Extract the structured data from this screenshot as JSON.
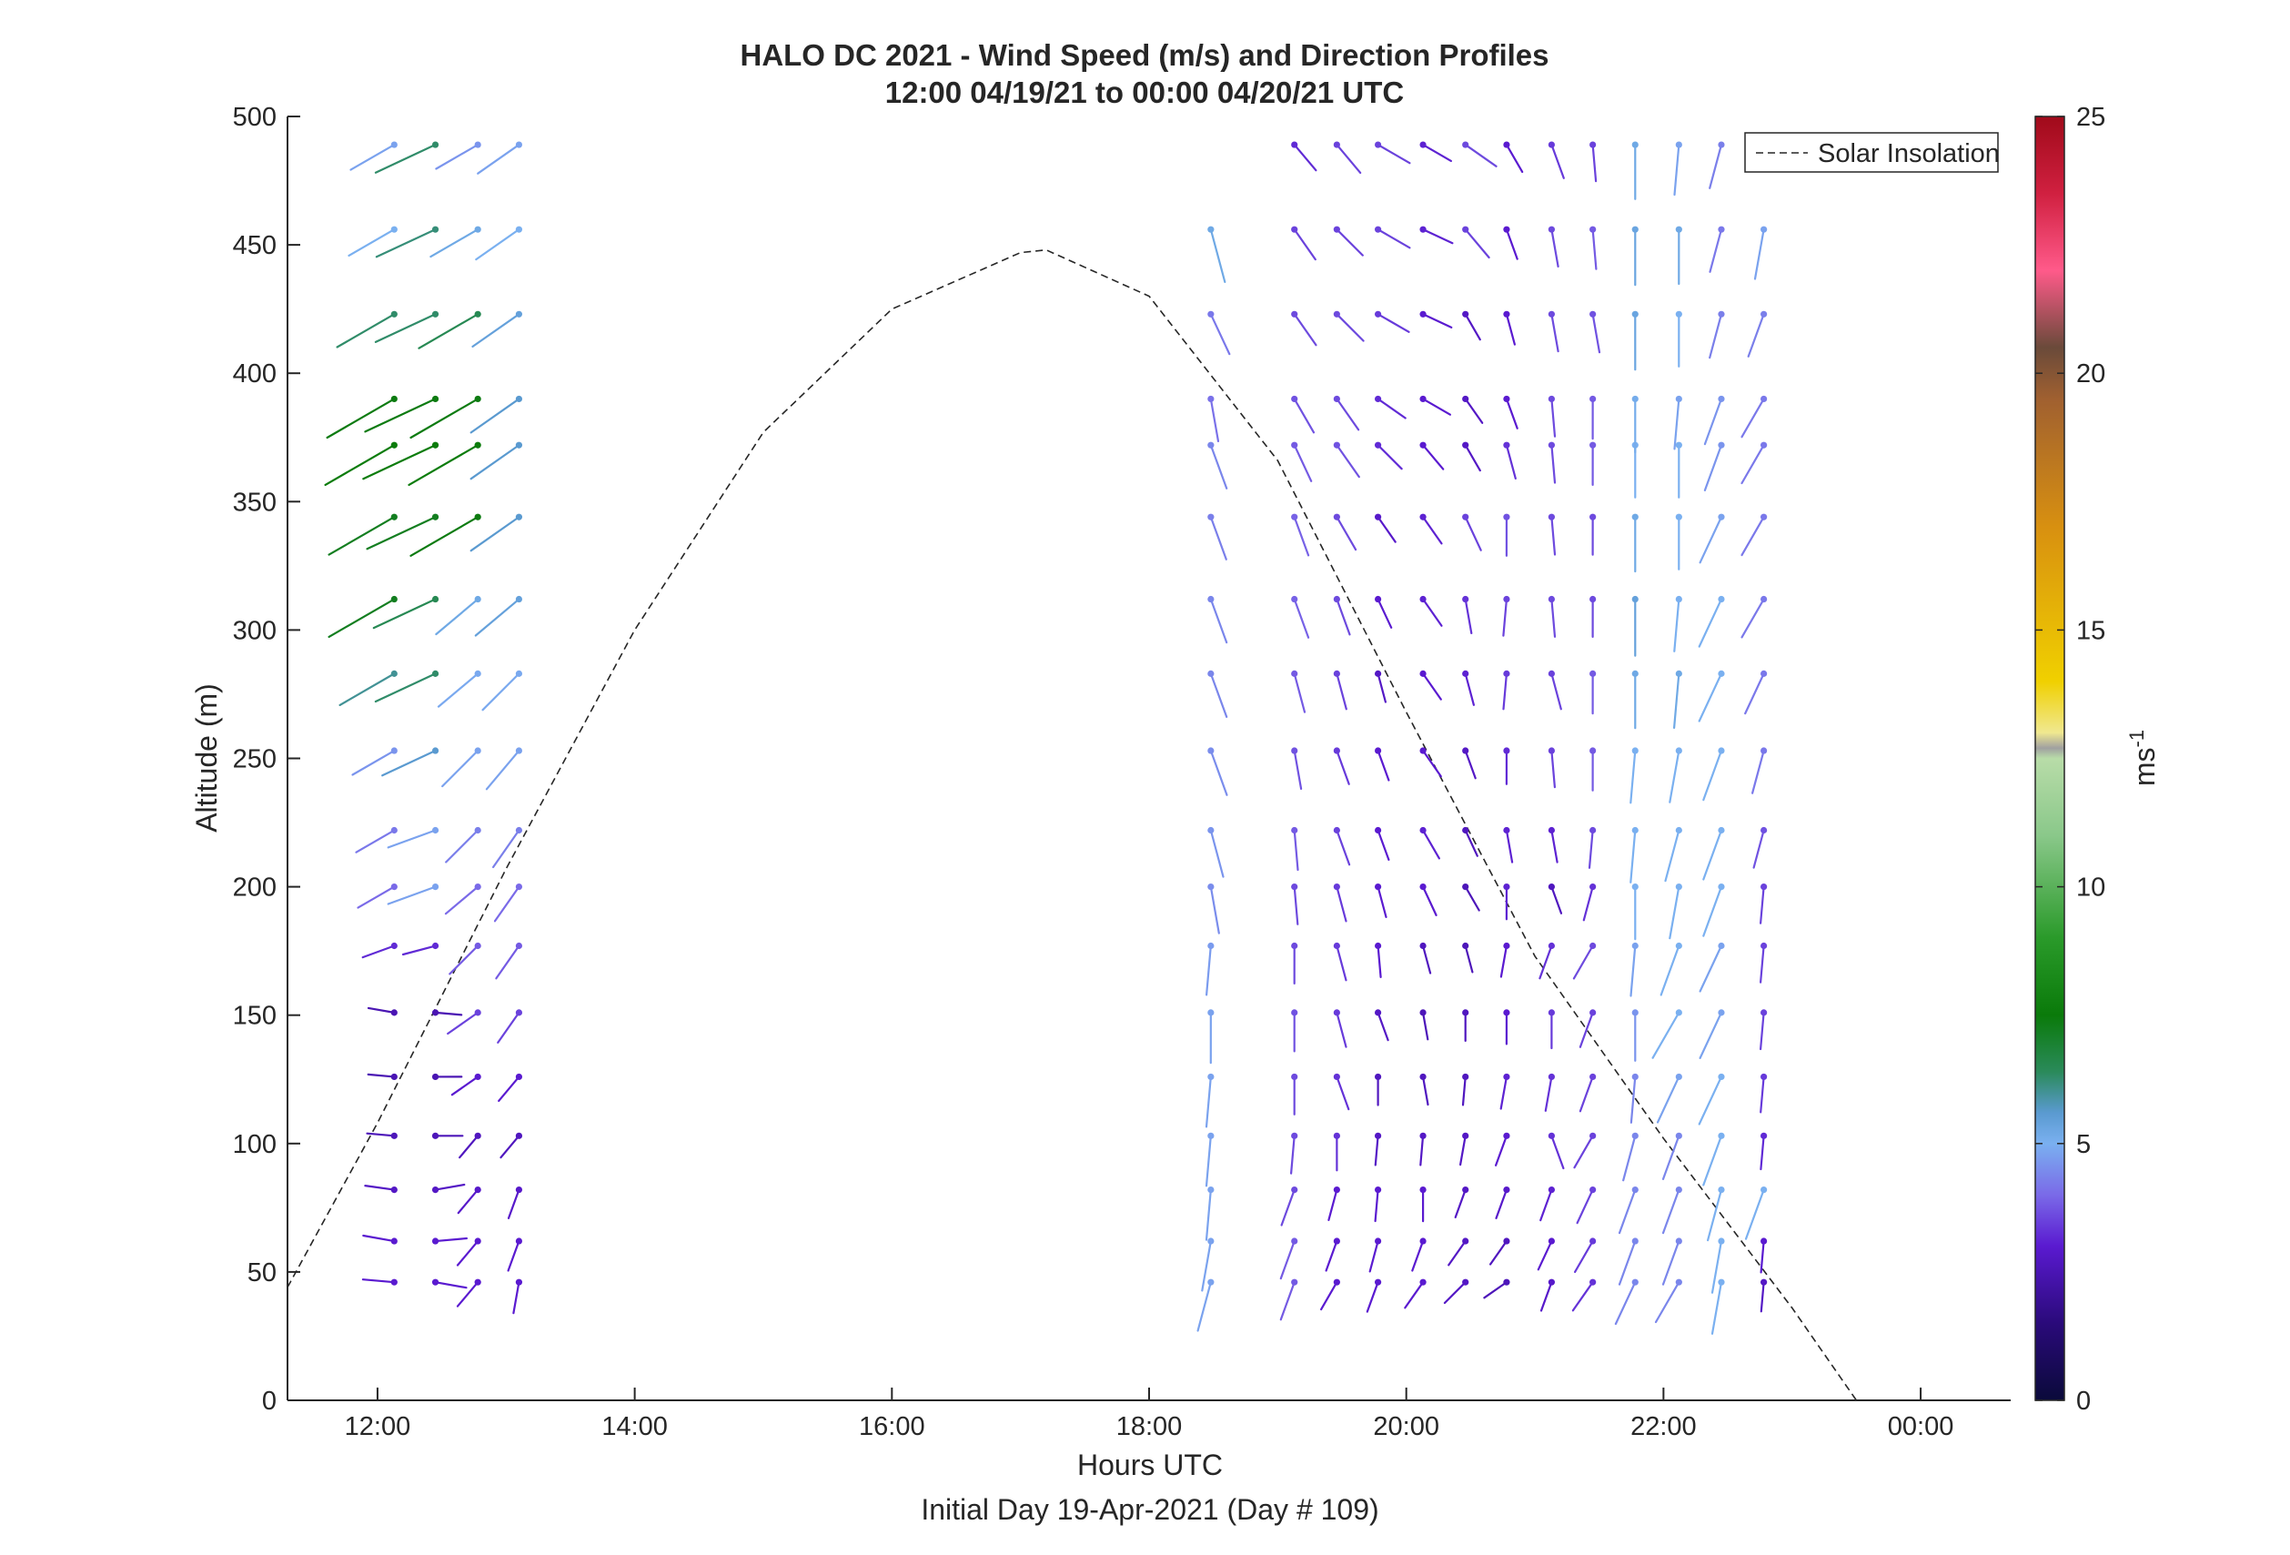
{
  "chart_data": {
    "type": "wind-barb-profile",
    "title": "HALO DC 2021 - Wind Speed (m/s) and Direction Profiles",
    "subtitle": "12:00 04/19/21 to 00:00 04/20/21  UTC",
    "xlabel": "Hours UTC",
    "xlabel2": "Initial Day 19-Apr-2021 (Day # 109)",
    "ylabel": "Altitude (m)",
    "xlim": [
      11.3,
      24.7
    ],
    "ylim": [
      0,
      500
    ],
    "x_ticks": [
      12,
      14,
      16,
      18,
      20,
      22,
      24
    ],
    "x_tick_labels": [
      "12:00",
      "14:00",
      "16:00",
      "18:00",
      "20:00",
      "22:00",
      "00:00"
    ],
    "y_ticks": [
      0,
      50,
      100,
      150,
      200,
      250,
      300,
      350,
      400,
      450,
      500
    ],
    "y_tick_labels": [
      "0",
      "50",
      "100",
      "150",
      "200",
      "250",
      "300",
      "350",
      "400",
      "450",
      "500"
    ],
    "grid": false,
    "legend": {
      "position": "top-right",
      "entries": [
        "Solar Insolation"
      ]
    },
    "colorbar": {
      "label": "ms",
      "label_exponent": "-1",
      "range": [
        0,
        25
      ],
      "ticks": [
        0,
        5,
        10,
        15,
        20,
        25
      ],
      "colormap": [
        [
          0,
          "#0a0a3a"
        ],
        [
          1.5,
          "#2a0a7a"
        ],
        [
          3,
          "#5a1ad0"
        ],
        [
          4,
          "#7a6ae8"
        ],
        [
          5,
          "#7ab0f0"
        ],
        [
          5.6,
          "#5a9ad0"
        ],
        [
          6.4,
          "#2a8a5a"
        ],
        [
          7.5,
          "#0a7a0a"
        ],
        [
          9,
          "#2a9a2a"
        ],
        [
          11,
          "#8ac88a"
        ],
        [
          12.5,
          "#b8dca8"
        ],
        [
          12.7,
          "#a0a0a0"
        ],
        [
          13,
          "#f0e890"
        ],
        [
          14,
          "#f0d000"
        ],
        [
          17,
          "#d89010"
        ],
        [
          19.5,
          "#a06030"
        ],
        [
          20.5,
          "#6a4a3a"
        ],
        [
          22,
          "#ff5a8a"
        ],
        [
          23.5,
          "#d02040"
        ],
        [
          25,
          "#a00a1a"
        ]
      ]
    },
    "altitudes": [
      46,
      62,
      82,
      103,
      126,
      151,
      177,
      200,
      222,
      253,
      283,
      312,
      344,
      372,
      390,
      423,
      456,
      489
    ],
    "solar_insolation": {
      "x": [
        11.3,
        12,
        13,
        14,
        15,
        16,
        17,
        17.2,
        18,
        19,
        20,
        21,
        22,
        23,
        23.5,
        24,
        24.7
      ],
      "y": [
        44,
        108,
        207,
        300,
        377,
        425,
        447,
        448,
        430,
        366,
        268,
        173,
        102,
        36,
        0,
        0,
        0
      ]
    },
    "profiles": [
      {
        "time": 12.13,
        "speed": [
          3.0,
          3.0,
          2.8,
          2.6,
          2.5,
          2.5,
          3.2,
          4.0,
          4.2,
          4.6,
          6.0,
          7.2,
          7.2,
          7.6,
          7.4,
          6.3,
          5.0,
          4.8
        ],
        "direction": [
          275,
          280,
          278,
          275,
          275,
          280,
          250,
          240,
          240,
          240,
          240,
          240,
          240,
          240,
          240,
          240,
          240,
          240
        ]
      },
      {
        "time": 12.45,
        "speed": [
          3.0,
          3.0,
          2.8,
          2.6,
          2.5,
          2.5,
          3.2,
          4.8,
          4.8,
          5.6,
          6.3,
          6.5,
          7.2,
          7.6,
          7.4,
          6.3,
          6.2,
          6.3
        ],
        "direction": [
          100,
          85,
          80,
          90,
          90,
          95,
          255,
          250,
          250,
          245,
          245,
          245,
          245,
          245,
          245,
          245,
          245,
          245
        ]
      },
      {
        "time": 12.78,
        "speed": [
          3.0,
          3.0,
          2.9,
          2.7,
          3.0,
          3.5,
          3.8,
          4.0,
          4.3,
          4.8,
          4.9,
          5.2,
          7.4,
          7.6,
          7.4,
          6.5,
          5.2,
          4.6
        ],
        "direction": [
          220,
          220,
          220,
          220,
          235,
          235,
          225,
          230,
          225,
          225,
          230,
          230,
          240,
          240,
          240,
          240,
          240,
          240
        ]
      },
      {
        "time": 13.1,
        "speed": [
          3.0,
          3.0,
          2.9,
          2.7,
          3.0,
          3.5,
          3.8,
          4.0,
          4.3,
          4.8,
          4.9,
          5.4,
          5.6,
          5.6,
          5.6,
          5.4,
          5.0,
          4.8
        ],
        "direction": [
          190,
          200,
          200,
          220,
          220,
          215,
          215,
          215,
          215,
          220,
          225,
          230,
          235,
          235,
          235,
          235,
          235,
          235
        ]
      },
      {
        "time": 18.48,
        "speed": [
          4.8,
          4.8,
          4.8,
          4.8,
          4.8,
          4.8,
          4.7,
          4.5,
          4.6,
          4.5,
          4.4,
          4.4,
          4.3,
          4.4,
          4.1,
          4.2,
          5.2,
          null
        ],
        "direction": [
          195,
          190,
          185,
          185,
          185,
          180,
          185,
          170,
          165,
          160,
          160,
          160,
          160,
          160,
          170,
          155,
          165,
          null
        ]
      },
      {
        "time": 19.13,
        "speed": [
          3.8,
          3.8,
          3.6,
          3.6,
          3.6,
          3.7,
          3.6,
          3.6,
          3.8,
          3.7,
          3.8,
          3.9,
          3.9,
          3.8,
          3.7,
          3.6,
          3.5,
          3.2
        ],
        "direction": [
          200,
          200,
          200,
          185,
          180,
          180,
          180,
          175,
          175,
          170,
          165,
          160,
          160,
          155,
          150,
          145,
          145,
          140
        ]
      },
      {
        "time": 19.46,
        "speed": [
          3.0,
          3.0,
          3.0,
          3.3,
          3.3,
          3.4,
          3.4,
          3.4,
          3.5,
          3.4,
          3.5,
          3.6,
          3.6,
          3.7,
          3.6,
          3.6,
          3.5,
          3.5
        ],
        "direction": [
          210,
          200,
          195,
          180,
          160,
          165,
          165,
          165,
          160,
          160,
          165,
          160,
          150,
          145,
          145,
          135,
          135,
          140
        ]
      },
      {
        "time": 19.78,
        "speed": [
          3.0,
          3.0,
          3.0,
          2.8,
          2.7,
          2.8,
          3.0,
          3.0,
          3.0,
          3.0,
          2.8,
          3.0,
          2.9,
          3.2,
          3.2,
          3.4,
          3.5,
          3.5
        ],
        "direction": [
          200,
          195,
          185,
          185,
          180,
          160,
          175,
          165,
          160,
          160,
          165,
          155,
          145,
          135,
          125,
          120,
          120,
          120
        ]
      },
      {
        "time": 20.13,
        "speed": [
          3.0,
          3.0,
          3.0,
          2.8,
          2.7,
          2.6,
          2.7,
          3.0,
          3.1,
          3.0,
          3.0,
          3.1,
          3.1,
          3.0,
          3.0,
          3.0,
          3.1,
          3.1
        ],
        "direction": [
          215,
          200,
          180,
          185,
          170,
          170,
          165,
          155,
          150,
          145,
          145,
          145,
          145,
          140,
          120,
          115,
          115,
          120
        ]
      },
      {
        "time": 20.46,
        "speed": [
          2.8,
          2.8,
          2.8,
          2.8,
          2.7,
          2.7,
          2.6,
          2.6,
          2.7,
          2.8,
          3.1,
          3.3,
          3.5,
          2.8,
          2.8,
          2.8,
          3.5,
          3.6
        ],
        "direction": [
          225,
          215,
          200,
          190,
          185,
          180,
          165,
          150,
          155,
          160,
          165,
          170,
          155,
          150,
          145,
          150,
          140,
          125
        ]
      },
      {
        "time": 20.78,
        "speed": [
          2.6,
          2.7,
          2.9,
          3.0,
          3.1,
          3.0,
          3.0,
          3.1,
          3.1,
          3.2,
          3.4,
          3.5,
          3.7,
          3.3,
          3.0,
          3.0,
          3.0,
          3.0
        ],
        "direction": [
          235,
          215,
          200,
          200,
          190,
          180,
          190,
          180,
          170,
          180,
          185,
          185,
          180,
          165,
          160,
          165,
          160,
          150
        ]
      },
      {
        "time": 21.13,
        "speed": [
          2.9,
          3.0,
          3.1,
          3.3,
          3.3,
          3.4,
          3.3,
          2.7,
          3.1,
          3.5,
          3.5,
          3.6,
          3.6,
          3.6,
          3.6,
          3.6,
          3.6,
          3.4
        ],
        "direction": [
          200,
          205,
          200,
          160,
          190,
          180,
          200,
          160,
          170,
          175,
          165,
          175,
          175,
          175,
          175,
          170,
          170,
          160
        ]
      },
      {
        "time": 21.45,
        "speed": [
          3.3,
          3.4,
          3.5,
          3.5,
          3.5,
          3.5,
          3.6,
          3.3,
          3.6,
          3.8,
          3.8,
          3.6,
          3.6,
          3.8,
          3.8,
          3.7,
          3.8,
          3.5
        ],
        "direction": [
          215,
          210,
          205,
          210,
          200,
          200,
          210,
          195,
          185,
          180,
          180,
          180,
          180,
          180,
          180,
          170,
          175,
          175
        ]
      },
      {
        "time": 21.78,
        "speed": [
          4.4,
          4.4,
          4.4,
          4.4,
          4.4,
          4.6,
          4.8,
          5.0,
          5.0,
          5.0,
          5.2,
          5.4,
          5.2,
          5.0,
          5.1,
          5.3,
          5.3,
          5.2
        ],
        "direction": [
          205,
          200,
          200,
          195,
          185,
          180,
          185,
          180,
          185,
          185,
          180,
          180,
          180,
          180,
          180,
          180,
          180,
          180
        ]
      },
      {
        "time": 22.12,
        "speed": [
          4.4,
          4.4,
          4.4,
          4.4,
          4.8,
          5.0,
          5.0,
          5.0,
          5.0,
          5.0,
          5.2,
          5.0,
          5.0,
          5.0,
          4.8,
          5.0,
          5.2,
          4.8
        ],
        "direction": [
          210,
          200,
          200,
          200,
          205,
          210,
          200,
          190,
          195,
          190,
          185,
          185,
          180,
          180,
          185,
          180,
          180,
          185
        ]
      },
      {
        "time": 22.45,
        "speed": [
          5.0,
          5.0,
          5.0,
          5.0,
          5.0,
          4.8,
          4.8,
          5.0,
          5.0,
          5.0,
          5.0,
          5.0,
          4.8,
          4.6,
          4.6,
          4.3,
          4.2,
          4.3
        ],
        "direction": [
          190,
          190,
          195,
          200,
          205,
          205,
          205,
          200,
          200,
          200,
          205,
          205,
          205,
          200,
          200,
          195,
          195,
          195
        ]
      },
      {
        "time": 22.78,
        "speed": [
          2.8,
          3.0,
          5.0,
          3.2,
          3.4,
          3.5,
          3.5,
          3.5,
          3.7,
          4.2,
          4.2,
          4.2,
          4.2,
          4.2,
          4.2,
          4.3,
          4.8,
          null
        ],
        "direction": [
          185,
          185,
          200,
          185,
          185,
          185,
          185,
          185,
          195,
          195,
          205,
          210,
          210,
          210,
          210,
          200,
          190,
          null
        ]
      }
    ]
  }
}
